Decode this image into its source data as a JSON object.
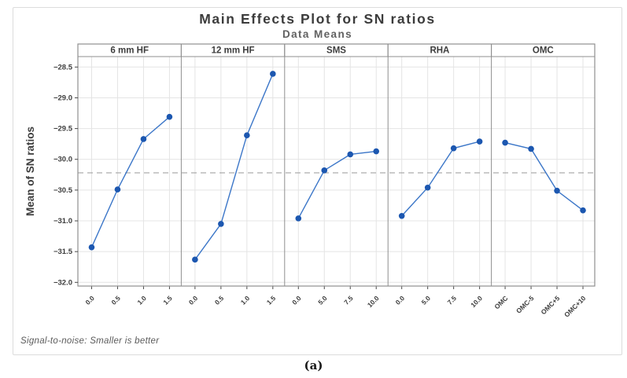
{
  "figure": {
    "title": "Main Effects Plot for SN ratios",
    "subtitle": "Data Means",
    "footnote": "Signal-to-noise: Smaller is better",
    "caption": "(a)"
  },
  "chart_data": {
    "type": "line",
    "title": "Main Effects Plot for SN ratios",
    "subtitle": "Data Means",
    "ylabel": "Mean of SN ratios",
    "xlabel": "",
    "ylim": [
      -32.06,
      -28.33
    ],
    "yticks": [
      -28.5,
      -29.0,
      -29.5,
      -30.0,
      -30.5,
      -31.0,
      -31.5,
      -32.0
    ],
    "grid": true,
    "reference_line": -30.22,
    "footnote": "Signal-to-noise: Smaller is better",
    "panels": [
      {
        "label": "6 mm HF",
        "categories": [
          "0.0",
          "0.5",
          "1.0",
          "1.5"
        ],
        "values": [
          -31.43,
          -30.49,
          -29.67,
          -29.31
        ]
      },
      {
        "label": "12 mm HF",
        "categories": [
          "0.0",
          "0.5",
          "1.0",
          "1.5"
        ],
        "values": [
          -31.63,
          -31.05,
          -29.61,
          -28.61
        ]
      },
      {
        "label": "SMS",
        "categories": [
          "0.0",
          "5.0",
          "7.5",
          "10.0"
        ],
        "values": [
          -30.96,
          -30.18,
          -29.92,
          -29.87
        ]
      },
      {
        "label": "RHA",
        "categories": [
          "0.0",
          "5.0",
          "7.5",
          "10.0"
        ],
        "values": [
          -30.92,
          -30.46,
          -29.82,
          -29.71
        ]
      },
      {
        "label": "OMC",
        "categories": [
          "OMC",
          "OMC-5",
          "OMC+5",
          "OMC+10"
        ],
        "values": [
          -29.73,
          -29.83,
          -30.51,
          -30.83
        ]
      }
    ],
    "colors": {
      "line": "#3b76c8",
      "marker": "#1c57b0",
      "grid": "#e4e4e4",
      "panel_border": "#8f8f8f",
      "reference": "#a3a3a3",
      "tick": "#4a4a4a",
      "text": "#3d3d3d"
    }
  }
}
